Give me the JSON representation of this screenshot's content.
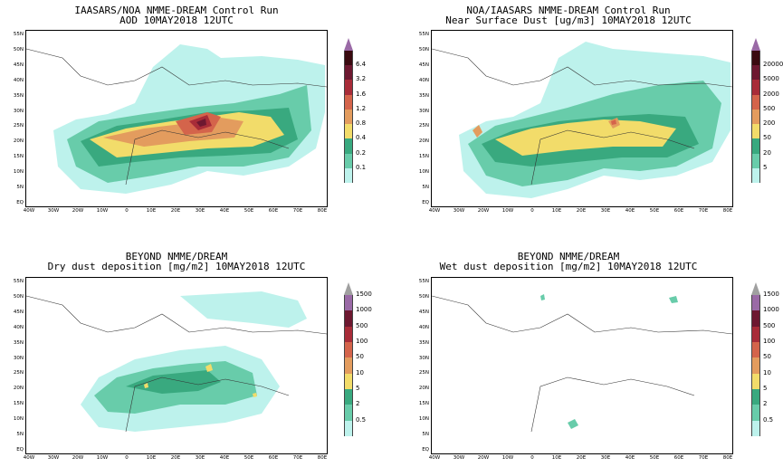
{
  "panels": [
    {
      "id": "aod",
      "title1": "IAASARS/NOA NMME-DREAM Control Run",
      "title2": "AOD  10MAY2018 12UTC",
      "legend": [
        "0.1",
        "0.2",
        "0.4",
        "0.8",
        "1.2",
        "1.6",
        "3.2",
        "6.4"
      ],
      "colors": [
        "#bdf2ec",
        "#68ccaa",
        "#39a97f",
        "#f2dc6a",
        "#e39c5e",
        "#d4644b",
        "#a82c38",
        "#6d1830",
        "#3a0a10"
      ],
      "top_color": "#9a6aa6"
    },
    {
      "id": "surface",
      "title1": "NOA/IAASARS NMME-DREAM Control Run",
      "title2": "Near Surface Dust [ug/m3] 10MAY2018 12UTC",
      "legend": [
        "5",
        "20",
        "50",
        "200",
        "500",
        "2000",
        "5000",
        "20000"
      ],
      "colors": [
        "#bdf2ec",
        "#68ccaa",
        "#39a97f",
        "#f2dc6a",
        "#e39c5e",
        "#d4644b",
        "#a82c38",
        "#6d1830",
        "#3a0a10"
      ],
      "top_color": "#9a6aa6"
    },
    {
      "id": "dry",
      "title1": "BEYOND NMME/DREAM",
      "title2": "Dry dust deposition [mg/m2] 10MAY2018 12UTC",
      "legend": [
        "0.5",
        "2",
        "5",
        "10",
        "50",
        "100",
        "500",
        "1000",
        "1500"
      ],
      "colors": [
        "#bdf2ec",
        "#68ccaa",
        "#39a97f",
        "#f2dc6a",
        "#e39c5e",
        "#d4644b",
        "#a82c38",
        "#6d1830",
        "#9a6aa6"
      ],
      "top_color": "#a0a0a0"
    },
    {
      "id": "wet",
      "title1": "BEYOND NMME/DREAM",
      "title2": "Wet dust deposition [mg/m2] 10MAY2018 12UTC",
      "legend": [
        "0.5",
        "2",
        "5",
        "10",
        "50",
        "100",
        "500",
        "1000",
        "1500"
      ],
      "colors": [
        "#bdf2ec",
        "#68ccaa",
        "#39a97f",
        "#f2dc6a",
        "#e39c5e",
        "#d4644b",
        "#a82c38",
        "#6d1830",
        "#9a6aa6"
      ],
      "top_color": "#a0a0a0"
    }
  ],
  "lat_labels": [
    "55N",
    "50N",
    "45N",
    "40N",
    "35N",
    "30N",
    "25N",
    "20N",
    "15N",
    "10N",
    "5N",
    "EQ"
  ],
  "lon_labels": [
    "40W",
    "30W",
    "20W",
    "10W",
    "0",
    "10E",
    "20E",
    "30E",
    "40E",
    "50E",
    "60E",
    "70E",
    "80E"
  ]
}
